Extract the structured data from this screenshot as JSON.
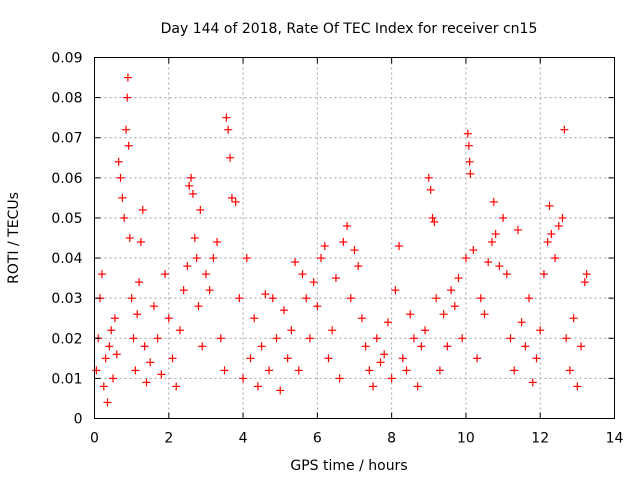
{
  "chart_data": {
    "type": "scatter",
    "title": "Day 144 of 2018, Rate Of TEC Index for receiver cn15",
    "xlabel": "GPS time / hours",
    "ylabel": "ROTI / TECUs",
    "xlim": [
      0,
      14
    ],
    "ylim": [
      0,
      0.09
    ],
    "x_ticks": [
      0,
      2,
      4,
      6,
      8,
      10,
      12,
      14
    ],
    "y_ticks": [
      0,
      0.01,
      0.02,
      0.03,
      0.04,
      0.05,
      0.06,
      0.07,
      0.08,
      0.09
    ],
    "x_tick_labels": [
      "0",
      "2",
      "4",
      "6",
      "8",
      "10",
      "12",
      "14"
    ],
    "y_tick_labels": [
      "0",
      "0.01",
      "0.02",
      "0.03",
      "0.04",
      "0.05",
      "0.06",
      "0.07",
      "0.08",
      "0.09"
    ],
    "grid": true,
    "marker": "+",
    "marker_color": "#ff0000",
    "series": [
      {
        "name": "ROTI",
        "points": [
          [
            0.05,
            0.012
          ],
          [
            0.1,
            0.02
          ],
          [
            0.15,
            0.03
          ],
          [
            0.2,
            0.036
          ],
          [
            0.25,
            0.008
          ],
          [
            0.3,
            0.015
          ],
          [
            0.35,
            0.004
          ],
          [
            0.4,
            0.018
          ],
          [
            0.45,
            0.022
          ],
          [
            0.5,
            0.01
          ],
          [
            0.55,
            0.025
          ],
          [
            0.6,
            0.016
          ],
          [
            0.65,
            0.064
          ],
          [
            0.7,
            0.06
          ],
          [
            0.75,
            0.055
          ],
          [
            0.8,
            0.05
          ],
          [
            0.85,
            0.072
          ],
          [
            0.88,
            0.08
          ],
          [
            0.9,
            0.085
          ],
          [
            0.92,
            0.068
          ],
          [
            0.95,
            0.045
          ],
          [
            1.0,
            0.03
          ],
          [
            1.05,
            0.02
          ],
          [
            1.1,
            0.012
          ],
          [
            1.15,
            0.026
          ],
          [
            1.2,
            0.034
          ],
          [
            1.25,
            0.044
          ],
          [
            1.3,
            0.052
          ],
          [
            1.35,
            0.018
          ],
          [
            1.4,
            0.009
          ],
          [
            1.5,
            0.014
          ],
          [
            1.6,
            0.028
          ],
          [
            1.7,
            0.02
          ],
          [
            1.8,
            0.011
          ],
          [
            1.9,
            0.036
          ],
          [
            2.0,
            0.025
          ],
          [
            2.1,
            0.015
          ],
          [
            2.2,
            0.008
          ],
          [
            2.3,
            0.022
          ],
          [
            2.4,
            0.032
          ],
          [
            2.5,
            0.038
          ],
          [
            2.55,
            0.058
          ],
          [
            2.6,
            0.06
          ],
          [
            2.65,
            0.056
          ],
          [
            2.7,
            0.045
          ],
          [
            2.75,
            0.04
          ],
          [
            2.8,
            0.028
          ],
          [
            2.85,
            0.052
          ],
          [
            2.9,
            0.018
          ],
          [
            3.0,
            0.036
          ],
          [
            3.1,
            0.032
          ],
          [
            3.2,
            0.04
          ],
          [
            3.3,
            0.044
          ],
          [
            3.4,
            0.02
          ],
          [
            3.5,
            0.012
          ],
          [
            3.55,
            0.075
          ],
          [
            3.6,
            0.072
          ],
          [
            3.65,
            0.065
          ],
          [
            3.7,
            0.055
          ],
          [
            3.8,
            0.054
          ],
          [
            3.9,
            0.03
          ],
          [
            4.0,
            0.01
          ],
          [
            4.1,
            0.04
          ],
          [
            4.2,
            0.015
          ],
          [
            4.3,
            0.025
          ],
          [
            4.4,
            0.008
          ],
          [
            4.5,
            0.018
          ],
          [
            4.6,
            0.031
          ],
          [
            4.7,
            0.012
          ],
          [
            4.8,
            0.03
          ],
          [
            4.9,
            0.02
          ],
          [
            5.0,
            0.007
          ],
          [
            5.1,
            0.027
          ],
          [
            5.2,
            0.015
          ],
          [
            5.3,
            0.022
          ],
          [
            5.4,
            0.039
          ],
          [
            5.5,
            0.012
          ],
          [
            5.6,
            0.036
          ],
          [
            5.7,
            0.03
          ],
          [
            5.8,
            0.02
          ],
          [
            5.9,
            0.034
          ],
          [
            6.0,
            0.028
          ],
          [
            6.1,
            0.04
          ],
          [
            6.2,
            0.043
          ],
          [
            6.3,
            0.015
          ],
          [
            6.4,
            0.022
          ],
          [
            6.5,
            0.035
          ],
          [
            6.6,
            0.01
          ],
          [
            6.7,
            0.044
          ],
          [
            6.8,
            0.048
          ],
          [
            6.9,
            0.03
          ],
          [
            7.0,
            0.042
          ],
          [
            7.1,
            0.038
          ],
          [
            7.2,
            0.025
          ],
          [
            7.3,
            0.018
          ],
          [
            7.4,
            0.012
          ],
          [
            7.5,
            0.008
          ],
          [
            7.6,
            0.02
          ],
          [
            7.7,
            0.014
          ],
          [
            7.8,
            0.016
          ],
          [
            7.9,
            0.024
          ],
          [
            8.0,
            0.01
          ],
          [
            8.1,
            0.032
          ],
          [
            8.2,
            0.043
          ],
          [
            8.3,
            0.015
          ],
          [
            8.4,
            0.012
          ],
          [
            8.5,
            0.026
          ],
          [
            8.6,
            0.02
          ],
          [
            8.7,
            0.008
          ],
          [
            8.8,
            0.018
          ],
          [
            8.9,
            0.022
          ],
          [
            9.0,
            0.06
          ],
          [
            9.05,
            0.057
          ],
          [
            9.1,
            0.05
          ],
          [
            9.15,
            0.049
          ],
          [
            9.2,
            0.03
          ],
          [
            9.3,
            0.012
          ],
          [
            9.4,
            0.026
          ],
          [
            9.5,
            0.018
          ],
          [
            9.6,
            0.032
          ],
          [
            9.7,
            0.028
          ],
          [
            9.8,
            0.035
          ],
          [
            9.9,
            0.02
          ],
          [
            10.0,
            0.04
          ],
          [
            10.05,
            0.071
          ],
          [
            10.08,
            0.068
          ],
          [
            10.1,
            0.064
          ],
          [
            10.12,
            0.061
          ],
          [
            10.2,
            0.042
          ],
          [
            10.3,
            0.015
          ],
          [
            10.4,
            0.03
          ],
          [
            10.5,
            0.026
          ],
          [
            10.6,
            0.039
          ],
          [
            10.7,
            0.044
          ],
          [
            10.75,
            0.054
          ],
          [
            10.8,
            0.046
          ],
          [
            10.9,
            0.038
          ],
          [
            11.0,
            0.05
          ],
          [
            11.1,
            0.036
          ],
          [
            11.2,
            0.02
          ],
          [
            11.3,
            0.012
          ],
          [
            11.4,
            0.047
          ],
          [
            11.5,
            0.024
          ],
          [
            11.6,
            0.018
          ],
          [
            11.7,
            0.03
          ],
          [
            11.8,
            0.009
          ],
          [
            11.9,
            0.015
          ],
          [
            12.0,
            0.022
          ],
          [
            12.1,
            0.036
          ],
          [
            12.2,
            0.044
          ],
          [
            12.25,
            0.053
          ],
          [
            12.3,
            0.046
          ],
          [
            12.4,
            0.04
          ],
          [
            12.5,
            0.048
          ],
          [
            12.6,
            0.05
          ],
          [
            12.65,
            0.072
          ],
          [
            12.7,
            0.02
          ],
          [
            12.8,
            0.012
          ],
          [
            12.9,
            0.025
          ],
          [
            13.0,
            0.008
          ],
          [
            13.1,
            0.018
          ],
          [
            13.2,
            0.034
          ],
          [
            13.25,
            0.036
          ]
        ]
      }
    ]
  }
}
